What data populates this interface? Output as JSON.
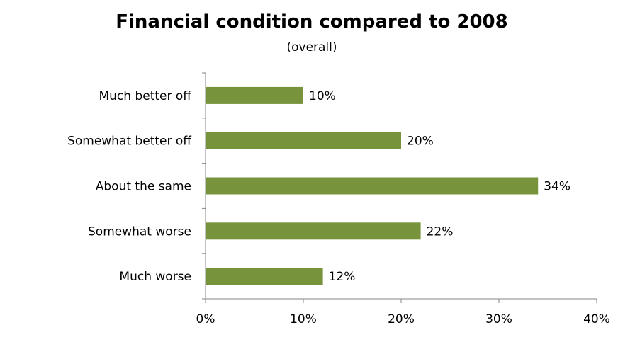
{
  "chart_data": {
    "type": "bar",
    "orientation": "horizontal",
    "title": "Financial condition compared to 2008",
    "subtitle": "(overall)",
    "categories": [
      "Much better off",
      "Somewhat better off",
      "About the same",
      "Somewhat worse",
      "Much worse"
    ],
    "values": [
      10,
      20,
      34,
      22,
      12
    ],
    "value_labels": [
      "10%",
      "20%",
      "34%",
      "22%",
      "12%"
    ],
    "xlim": [
      0,
      40
    ],
    "x_ticks": [
      0,
      10,
      20,
      30,
      40
    ],
    "x_tick_labels": [
      "0%",
      "10%",
      "20%",
      "30%",
      "40%"
    ],
    "xlabel": "",
    "ylabel": "",
    "grid": false,
    "legend": "none",
    "bar_color": "#77933c",
    "axis_color": "#868686"
  }
}
